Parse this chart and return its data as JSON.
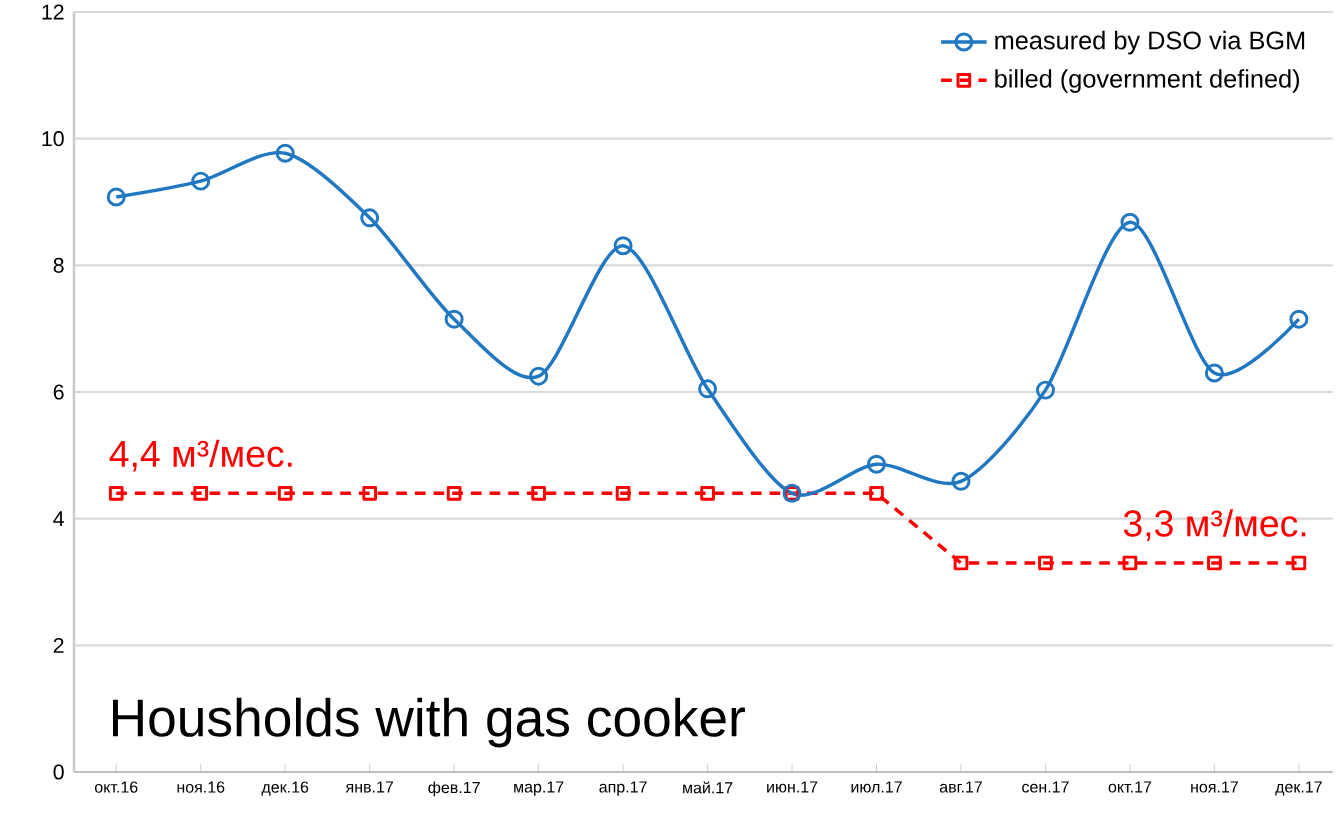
{
  "chart_data": {
    "type": "line",
    "categories": [
      "окт.16",
      "ноя.16",
      "дек.16",
      "янв.17",
      "фев.17",
      "мар.17",
      "апр.17",
      "май.17",
      "июн.17",
      "июл.17",
      "авг.17",
      "сен.17",
      "окт.17",
      "ноя.17",
      "дек.17"
    ],
    "series": [
      {
        "name": "measured by DSO via BGM",
        "color": "#1f78c1",
        "marker": "circle",
        "line_style": "solid",
        "values": [
          9.08,
          9.33,
          9.77,
          8.75,
          7.15,
          6.25,
          8.31,
          6.05,
          4.4,
          4.86,
          4.59,
          6.03,
          8.68,
          6.3,
          7.15
        ]
      },
      {
        "name": "billed (government defined)",
        "color": "#ff0000",
        "marker": "square",
        "line_style": "dashed",
        "values": [
          4.4,
          4.4,
          4.4,
          4.4,
          4.4,
          4.4,
          4.4,
          4.4,
          4.4,
          4.4,
          3.3,
          3.3,
          3.3,
          3.3,
          3.3
        ]
      }
    ],
    "ylim": [
      0,
      12
    ],
    "yticks": [
      0,
      2,
      4,
      6,
      8,
      10,
      12
    ],
    "grid": "y",
    "legend": "top right",
    "annotations": [
      {
        "text": "4,4 м³/мес.",
        "x": "окт.16",
        "y": 4.4
      },
      {
        "text": "3,3 м³/мес.",
        "x": "окт.17",
        "y": 3.3
      },
      "Housholds with gas cooker"
    ]
  }
}
